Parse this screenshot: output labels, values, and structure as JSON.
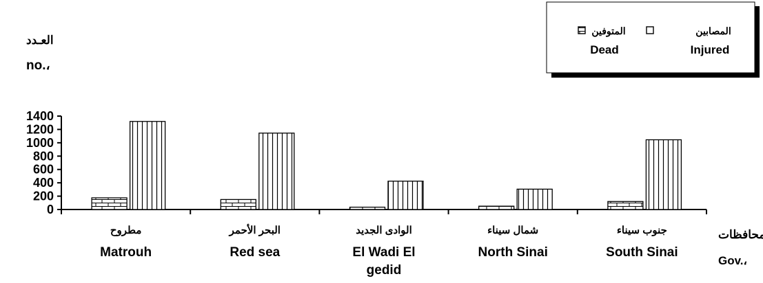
{
  "chart_data": {
    "type": "bar",
    "title": "",
    "ylabel": {
      "ar": "العـدد",
      "en": "no.،"
    },
    "xlabel": {
      "ar": "المحافظات",
      "en": "Gov.،"
    },
    "ylim": [
      0,
      1400
    ],
    "yticks": [
      "0",
      "200",
      "400",
      "600",
      "800",
      "1000",
      "1200",
      "1400"
    ],
    "categories": [
      {
        "ar": "مطروح",
        "en": [
          "Matrouh"
        ]
      },
      {
        "ar": "البحر الأحمر",
        "en": [
          "Red sea"
        ]
      },
      {
        "ar": "الوادى الجديد",
        "en": [
          "El Wadi El",
          "gedid"
        ]
      },
      {
        "ar": "شمال سيناء",
        "en": [
          "North Sinai"
        ]
      },
      {
        "ar": "جنوب سيناء",
        "en": [
          "South Sinai"
        ]
      }
    ],
    "series": [
      {
        "name": {
          "ar": "المتوفين",
          "en": "Dead"
        },
        "pattern": "brick",
        "values": [
          175,
          150,
          35,
          50,
          120
        ]
      },
      {
        "name": {
          "ar": "المصابين",
          "en": "Injured"
        },
        "pattern": "vertical-lines",
        "values": [
          1320,
          1145,
          425,
          305,
          1045
        ]
      }
    ],
    "grid": false,
    "legend_position": "top-right"
  }
}
